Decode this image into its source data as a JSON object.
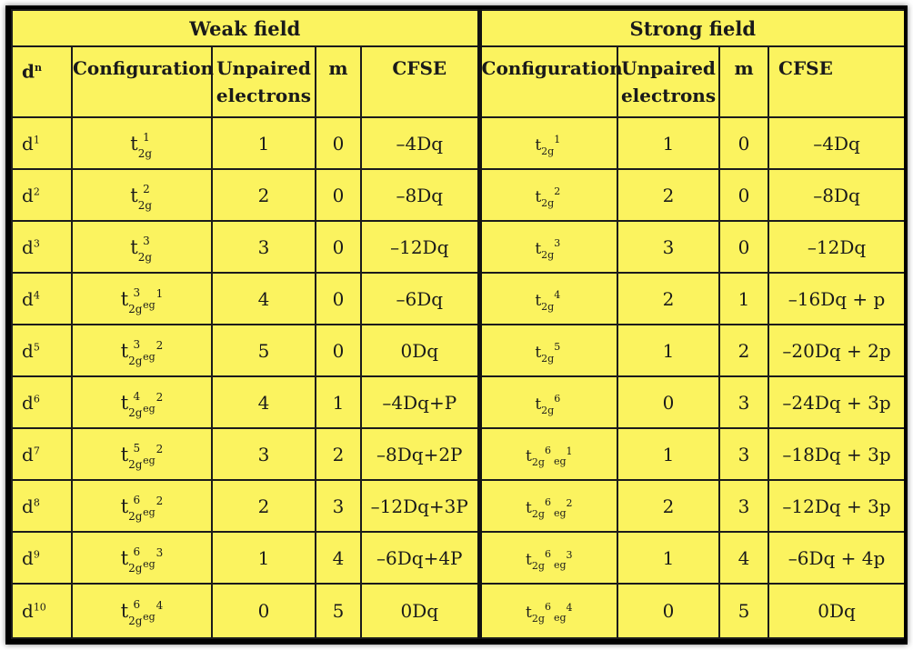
{
  "groups": {
    "weak": "Weak field",
    "strong": "Strong field"
  },
  "columns": {
    "dn_base": "d",
    "dn_sup": "n",
    "configuration": "Configuration",
    "unpaired_1": "Unpaired",
    "unpaired_2": "electrons",
    "m": "m",
    "cfse": "CFSE"
  },
  "rows": [
    {
      "d": "d",
      "dsup": "1",
      "w_t": "t",
      "w_sub": "2g",
      "w_exp": "1",
      "w_eg": "",
      "w_egexp": "",
      "w_unp": "1",
      "w_m": "0",
      "w_cfse": "–4Dq",
      "s_t": "t",
      "s_sub": "2g",
      "s_exp": "1",
      "s_eg": "",
      "s_egexp": "",
      "s_unp": "1",
      "s_m": "0",
      "s_cfse": "–4Dq"
    },
    {
      "d": "d",
      "dsup": "2",
      "w_t": "t",
      "w_sub": "2g",
      "w_exp": "2",
      "w_eg": "",
      "w_egexp": "",
      "w_unp": "2",
      "w_m": "0",
      "w_cfse": "–8Dq",
      "s_t": "t",
      "s_sub": "2g",
      "s_exp": "2",
      "s_eg": "",
      "s_egexp": "",
      "s_unp": "2",
      "s_m": "0",
      "s_cfse": "–8Dq"
    },
    {
      "d": "d",
      "dsup": "3",
      "w_t": "t",
      "w_sub": "2g",
      "w_exp": "3",
      "w_eg": "",
      "w_egexp": "",
      "w_unp": "3",
      "w_m": "0",
      "w_cfse": "–12Dq",
      "s_t": "t",
      "s_sub": "2g",
      "s_exp": "3",
      "s_eg": "",
      "s_egexp": "",
      "s_unp": "3",
      "s_m": "0",
      "s_cfse": "–12Dq"
    },
    {
      "d": "d",
      "dsup": "4",
      "w_t": "t",
      "w_sub": "2g",
      "w_exp": "3",
      "w_eg": "eg",
      "w_egexp": "1",
      "w_unp": "4",
      "w_m": "0",
      "w_cfse": "–6Dq",
      "s_t": "t",
      "s_sub": "2g",
      "s_exp": "4",
      "s_eg": "",
      "s_egexp": "",
      "s_unp": "2",
      "s_m": "1",
      "s_cfse": "–16Dq + p"
    },
    {
      "d": "d",
      "dsup": "5",
      "w_t": "t",
      "w_sub": "2g",
      "w_exp": "3",
      "w_eg": "eg",
      "w_egexp": "2",
      "w_unp": "5",
      "w_m": "0",
      "w_cfse": "0Dq",
      "s_t": "t",
      "s_sub": "2g",
      "s_exp": "5",
      "s_eg": "",
      "s_egexp": "",
      "s_unp": "1",
      "s_m": "2",
      "s_cfse": "–20Dq + 2p"
    },
    {
      "d": "d",
      "dsup": "6",
      "w_t": "t",
      "w_sub": "2g",
      "w_exp": "4",
      "w_eg": "eg",
      "w_egexp": "2",
      "w_unp": "4",
      "w_m": "1",
      "w_cfse": "–4Dq+P",
      "s_t": "t",
      "s_sub": "2g",
      "s_exp": "6",
      "s_eg": "",
      "s_egexp": "",
      "s_unp": "0",
      "s_m": "3",
      "s_cfse": "–24Dq + 3p"
    },
    {
      "d": "d",
      "dsup": "7",
      "w_t": "t",
      "w_sub": "2g",
      "w_exp": "5",
      "w_eg": "eg",
      "w_egexp": "2",
      "w_unp": "3",
      "w_m": "2",
      "w_cfse": "–8Dq+2P",
      "s_t": "t",
      "s_sub": "2g",
      "s_exp": "6",
      "s_eg": "eg",
      "s_egexp": "1",
      "s_unp": "1",
      "s_m": "3",
      "s_cfse": "–18Dq + 3p"
    },
    {
      "d": "d",
      "dsup": "8",
      "w_t": "t",
      "w_sub": "2g",
      "w_exp": "6",
      "w_eg": "eg",
      "w_egexp": "2",
      "w_unp": "2",
      "w_m": "3",
      "w_cfse": "–12Dq+3P",
      "s_t": "t",
      "s_sub": "2g",
      "s_exp": "6",
      "s_eg": "eg",
      "s_egexp": "2",
      "s_unp": "2",
      "s_m": "3",
      "s_cfse": "–12Dq + 3p"
    },
    {
      "d": "d",
      "dsup": "9",
      "w_t": "t",
      "w_sub": "2g",
      "w_exp": "6",
      "w_eg": "eg",
      "w_egexp": "3",
      "w_unp": "1",
      "w_m": "4",
      "w_cfse": "–6Dq+4P",
      "s_t": "t",
      "s_sub": "2g",
      "s_exp": "6",
      "s_eg": "eg",
      "s_egexp": "3",
      "s_unp": "1",
      "s_m": "4",
      "s_cfse": "–6Dq + 4p"
    },
    {
      "d": "d",
      "dsup": "10",
      "w_t": "t",
      "w_sub": "2g",
      "w_exp": "6",
      "w_eg": "eg",
      "w_egexp": "4",
      "w_unp": "0",
      "w_m": "5",
      "w_cfse": "0Dq",
      "s_t": "t",
      "s_sub": "2g",
      "s_exp": "6",
      "s_eg": "eg",
      "s_egexp": "4",
      "s_unp": "0",
      "s_m": "5",
      "s_cfse": "0Dq"
    }
  ],
  "colors": {
    "paper": "#fbf35f",
    "ink": "#1a1a1a",
    "frame": "#000000"
  }
}
